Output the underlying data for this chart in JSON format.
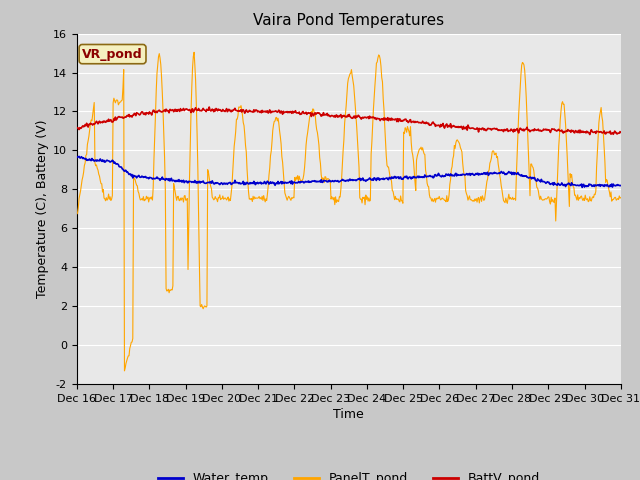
{
  "title": "Vaira Pond Temperatures",
  "xlabel": "Time",
  "ylabel": "Temperature (C), Battery (V)",
  "ylim": [
    -2,
    16
  ],
  "xlim": [
    0,
    15
  ],
  "x_tick_labels": [
    "Dec 16",
    "Dec 17",
    "Dec 18",
    "Dec 19",
    "Dec 20",
    "Dec 21",
    "Dec 22",
    "Dec 23",
    "Dec 24",
    "Dec 25",
    "Dec 26",
    "Dec 27",
    "Dec 28",
    "Dec 29",
    "Dec 30",
    "Dec 31"
  ],
  "annotation_text": "VR_pond",
  "annotation_box_color": "#f5f0c0",
  "annotation_border_color": "#8b6914",
  "annotation_text_color": "#8b0000",
  "fig_bg_color": "#c8c8c8",
  "plot_bg_color": "#e8e8e8",
  "water_temp_color": "#0000cc",
  "panel_temp_color": "#ffa500",
  "batt_color": "#cc0000",
  "grid_color": "#ffffff",
  "legend_labels": [
    "Water_temp",
    "PanelT_pond",
    "BattV_pond"
  ],
  "title_fontsize": 11,
  "axis_label_fontsize": 9,
  "tick_fontsize": 8,
  "legend_fontsize": 9,
  "annot_fontsize": 9
}
